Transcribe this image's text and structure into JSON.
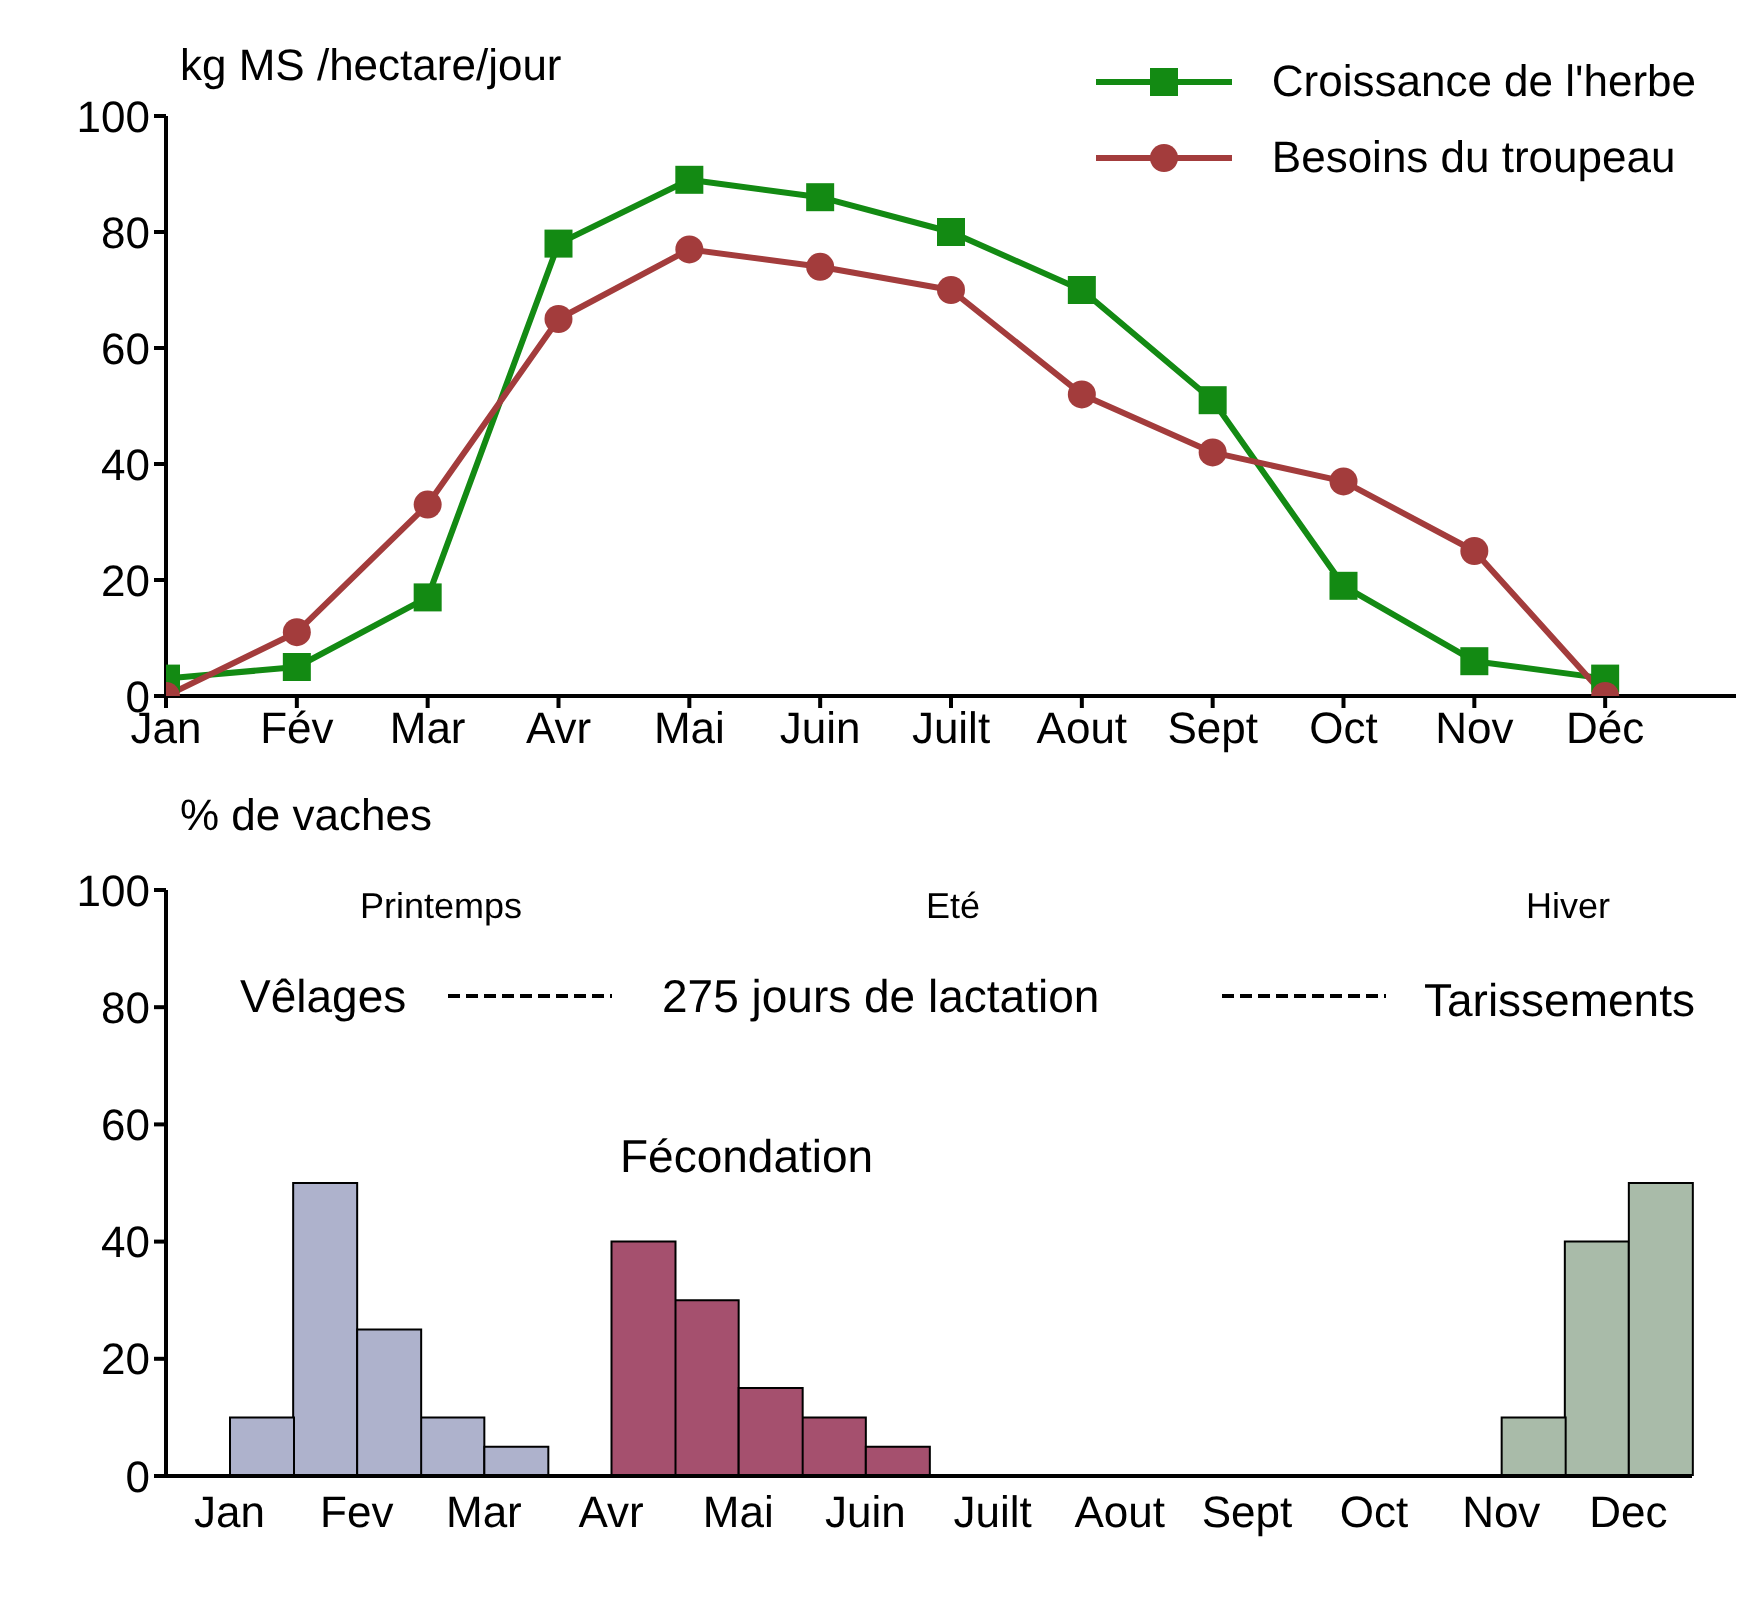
{
  "chart_data": [
    {
      "type": "line",
      "ylabel": "kg MS /hectare/jour",
      "categories": [
        "Jan",
        "Fév",
        "Mar",
        "Avr",
        "Mai",
        "Juin",
        "Juilt",
        "Aout",
        "Sept",
        "Oct",
        "Nov",
        "Déc"
      ],
      "series": [
        {
          "name": "Croissance de l'herbe",
          "color": "#138a13",
          "marker": "square",
          "values": [
            3,
            5,
            17,
            78,
            89,
            86,
            80,
            70,
            51,
            19,
            6,
            3
          ]
        },
        {
          "name": "Besoins du troupeau",
          "color": "#a33c3c",
          "marker": "circle",
          "values": [
            0,
            11,
            33,
            65,
            77,
            74,
            70,
            52,
            42,
            37,
            25,
            0
          ]
        }
      ],
      "ylim": [
        0,
        100
      ],
      "yticks": [
        0,
        20,
        40,
        60,
        80,
        100
      ],
      "legend": "top right",
      "line_style": "solid"
    },
    {
      "type": "bar",
      "ylabel": "% de vaches",
      "categories": [
        "Jan",
        "Fev",
        "Mar",
        "Avr",
        "Mai",
        "Juin",
        "Juilt",
        "Aout",
        "Sept",
        "Oct",
        "Nov",
        "Dec"
      ],
      "series": [
        {
          "values": [
            0,
            50,
            10,
            0,
            30,
            10,
            0,
            0,
            0,
            0,
            0,
            40
          ],
          "colors": [
            "#aeb2cc",
            "#aeb2cc",
            "#aeb2cc",
            "#a5506e",
            "#a5506e",
            "#a5506e",
            "#a5506e",
            "#a5506e",
            "#a5506e",
            "#a5506e",
            "#a9bba9",
            "#a9bba9"
          ]
        },
        {
          "values": [
            10,
            25,
            5,
            40,
            15,
            5,
            0,
            0,
            0,
            0,
            10,
            50
          ],
          "colors": [
            "#aeb2cc",
            "#aeb2cc",
            "#aeb2cc",
            "#a5506e",
            "#a5506e",
            "#a5506e",
            "#a5506e",
            "#a5506e",
            "#a5506e",
            "#a5506e",
            "#a9bba9",
            "#a9bba9"
          ]
        }
      ],
      "ylim": [
        0,
        100
      ],
      "yticks": [
        0,
        20,
        40,
        60,
        80,
        100
      ],
      "annotations": [
        "Printemps",
        "Eté",
        "Hiver",
        "Vêlages",
        "275 jours de lactation",
        "Tarissements",
        "Fécondation"
      ]
    }
  ]
}
